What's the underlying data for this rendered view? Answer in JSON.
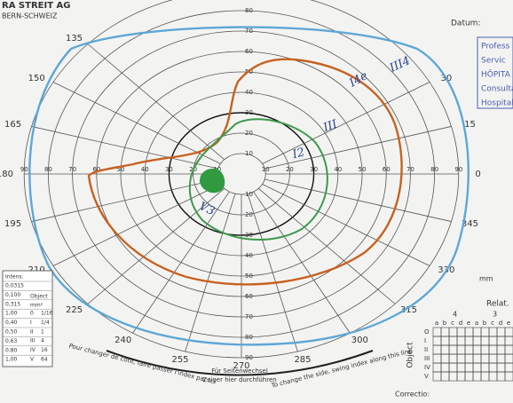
{
  "header": {
    "brand": "RA STREIT AG",
    "country": "BERN-SCHWEIZ",
    "date_label": "Datum:"
  },
  "stamp": [
    "Profess",
    "Servic",
    "HÔPITA",
    "Consultat",
    "Hospitals"
  ],
  "angles": [
    "135",
    "150",
    "165",
    "180",
    "195",
    "210",
    "225",
    "240",
    "255",
    "270",
    "285",
    "300",
    "315",
    "330",
    "345",
    "0",
    "15",
    "30"
  ],
  "radius_labels": [
    "10",
    "20",
    "30",
    "40",
    "50",
    "60",
    "70",
    "80",
    "90"
  ],
  "handwriting": [
    "I4e",
    "III4",
    "III",
    "I2",
    "V3"
  ],
  "table": {
    "intensity_header": "Intens.",
    "intensity": [
      "0,0315",
      "0,100",
      "0,315",
      "1,00",
      "0,40",
      "0,50",
      "0,63",
      "0,80",
      "1,00"
    ],
    "object_header": "Object",
    "area_header": "mm²",
    "objects": [
      "0",
      "I",
      "II",
      "III",
      "IV",
      "V"
    ],
    "areas": [
      "1/16",
      "1/4",
      "1",
      "4",
      "16",
      "64"
    ]
  },
  "relative": {
    "title": "Relat.",
    "groups": [
      "4",
      "3"
    ],
    "letters": [
      "a",
      "b",
      "c",
      "d",
      "e"
    ],
    "rows": [
      "O",
      "I",
      "II",
      "III",
      "IV",
      "V"
    ],
    "axis": "Object"
  },
  "footer": {
    "de_line1": "Für Seitenwechsel",
    "de_line2": "Zeiger hier durchführen",
    "fr": "Pour changer de côté, faire passer l'index par ici",
    "en": "To change the side, swing index along this line",
    "correction": "Correctio:",
    "mm": "mm"
  }
}
